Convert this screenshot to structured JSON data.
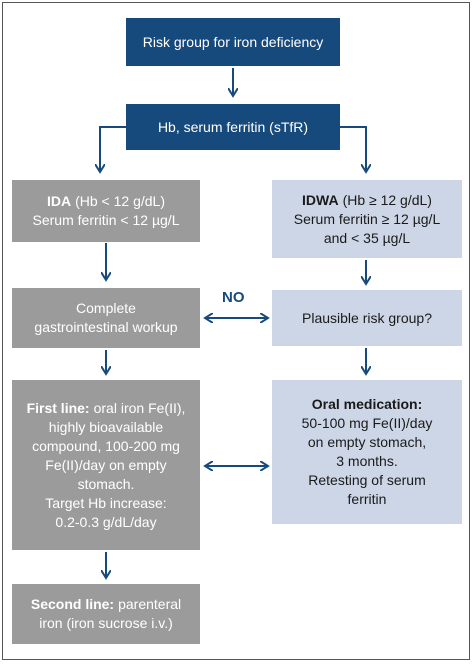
{
  "nodes": [
    {
      "lines": [
        "Risk group for iron deficiency"
      ]
    },
    {
      "lines": [
        "Hb, serum ferritin (sTfR)"
      ]
    },
    {
      "lines": [
        {
          "bold": "IDA",
          "text": "(Hb < 12 g/dL)"
        },
        "Serum ferritin < 12 µg/L"
      ]
    },
    {
      "lines": [
        {
          "bold": "IDWA",
          "text": "(Hb ≥ 12 g/dL)"
        },
        "Serum ferritin ≥ 12 µg/L",
        "and < 35 µg/L"
      ]
    },
    {
      "lines": [
        "Complete",
        "gastrointestinal workup"
      ]
    },
    {
      "lines": [
        "Plausible risk group?"
      ]
    },
    {
      "lines": [
        {
          "bold": "First line:",
          "text": "oral iron Fe(II),"
        },
        "highly bioavailable",
        "compound, 100-200 mg",
        "Fe(II)/day on empty",
        "stomach.",
        "Target Hb increase:",
        "0.2-0.3 g/dL/day"
      ]
    },
    {
      "lines": [
        {
          "bold": "Oral medication:"
        },
        "50-100 mg Fe(II)/day",
        "on empty stomach,",
        "3 months.",
        "Retesting of serum",
        "ferritin"
      ]
    },
    {
      "lines": [
        {
          "bold": "Second line:",
          "text": "parenteral"
        },
        "iron (iron sucrose i.v.)"
      ]
    }
  ],
  "edge_label": "NO"
}
